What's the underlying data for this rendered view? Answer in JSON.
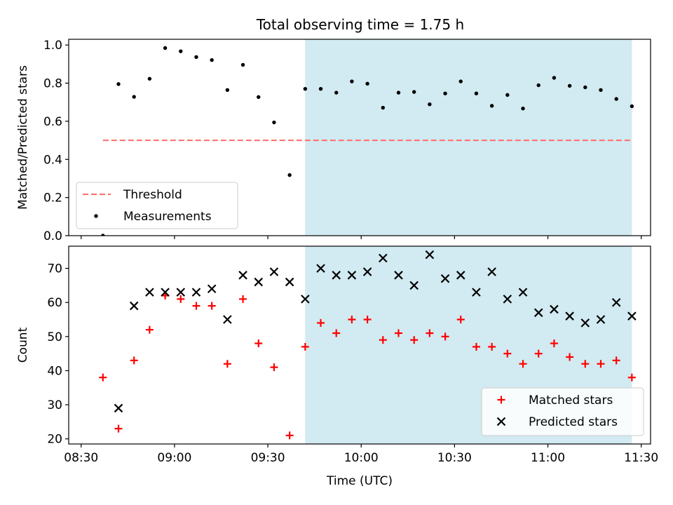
{
  "chart_data": [
    {
      "type": "scatter",
      "title": "Total observing time = 1.75 h",
      "xlabel": "",
      "ylabel": "Matched/Predicted stars",
      "ylim": [
        0,
        1.03
      ],
      "xlim": [
        "08:26",
        "11:33"
      ],
      "yticks": [
        "0.0",
        "0.2",
        "0.4",
        "0.6",
        "0.8",
        "1.0"
      ],
      "xticks": [
        "08:30",
        "09:00",
        "09:30",
        "10:00",
        "10:30",
        "11:00",
        "11:30"
      ],
      "shaded_span": [
        "09:42",
        "11:27"
      ],
      "shade_color": "#add8e6",
      "legend": "lower-left",
      "series": [
        {
          "name": "Threshold",
          "kind": "dashed-line",
          "color": "#ff7373",
          "x": [
            "08:37",
            "11:27"
          ],
          "y": [
            0.5,
            0.5
          ]
        },
        {
          "name": "Measurements",
          "kind": "dot",
          "color": "#000000",
          "x": [
            "08:37",
            "08:42",
            "08:47",
            "08:52",
            "08:57",
            "09:02",
            "09:07",
            "09:12",
            "09:17",
            "09:22",
            "09:27",
            "09:32",
            "09:37",
            "09:42",
            "09:47",
            "09:52",
            "09:57",
            "10:02",
            "10:07",
            "10:12",
            "10:17",
            "10:22",
            "10:27",
            "10:32",
            "10:37",
            "10:42",
            "10:47",
            "10:52",
            "10:57",
            "11:02",
            "11:07",
            "11:12",
            "11:17",
            "11:22",
            "11:27"
          ],
          "y": [
            0.0,
            0.795,
            0.728,
            0.823,
            0.984,
            0.967,
            0.937,
            0.921,
            0.764,
            0.896,
            0.727,
            0.594,
            0.318,
            0.77,
            0.77,
            0.75,
            0.809,
            0.797,
            0.671,
            0.75,
            0.754,
            0.689,
            0.746,
            0.809,
            0.746,
            0.681,
            0.738,
            0.667,
            0.789,
            0.828,
            0.786,
            0.778,
            0.764,
            0.717,
            0.679
          ]
        }
      ]
    },
    {
      "type": "scatter",
      "title": "",
      "xlabel": "Time (UTC)",
      "ylabel": "Count",
      "ylim": [
        18.5,
        76.5
      ],
      "xlim": [
        "08:26",
        "11:33"
      ],
      "yticks": [
        "20",
        "30",
        "40",
        "50",
        "60",
        "70"
      ],
      "xticks": [
        "08:30",
        "09:00",
        "09:30",
        "10:00",
        "10:30",
        "11:00",
        "11:30"
      ],
      "shaded_span": [
        "09:42",
        "11:27"
      ],
      "shade_color": "#add8e6",
      "legend": "lower-right",
      "series": [
        {
          "name": "Matched stars",
          "kind": "plus",
          "color": "#ff0000",
          "x": [
            "08:37",
            "08:42",
            "08:47",
            "08:52",
            "08:57",
            "09:02",
            "09:07",
            "09:12",
            "09:17",
            "09:22",
            "09:27",
            "09:32",
            "09:37",
            "09:42",
            "09:47",
            "09:52",
            "09:57",
            "10:02",
            "10:07",
            "10:12",
            "10:17",
            "10:22",
            "10:27",
            "10:32",
            "10:37",
            "10:42",
            "10:47",
            "10:52",
            "10:57",
            "11:02",
            "11:07",
            "11:12",
            "11:17",
            "11:22",
            "11:27"
          ],
          "y": [
            38,
            23,
            43,
            52,
            62,
            61,
            59,
            59,
            42,
            61,
            48,
            41,
            21,
            47,
            54,
            51,
            55,
            55,
            49,
            51,
            49,
            51,
            50,
            55,
            47,
            47,
            45,
            42,
            45,
            48,
            44,
            42,
            42,
            43,
            38
          ]
        },
        {
          "name": "Predicted stars",
          "kind": "x",
          "color": "#000000",
          "x": [
            "08:42",
            "08:47",
            "08:52",
            "08:57",
            "09:02",
            "09:07",
            "09:12",
            "09:17",
            "09:22",
            "09:27",
            "09:32",
            "09:37",
            "09:42",
            "09:47",
            "09:52",
            "09:57",
            "10:02",
            "10:07",
            "10:12",
            "10:17",
            "10:22",
            "10:27",
            "10:32",
            "10:37",
            "10:42",
            "10:47",
            "10:52",
            "10:57",
            "11:02",
            "11:07",
            "11:12",
            "11:17",
            "11:22",
            "11:27"
          ],
          "y": [
            29,
            59,
            63,
            63,
            63,
            63,
            64,
            55,
            68,
            66,
            69,
            66,
            61,
            70,
            68,
            68,
            69,
            73,
            68,
            65,
            74,
            67,
            68,
            63,
            69,
            61,
            63,
            57,
            58,
            56,
            54,
            55,
            60,
            56
          ]
        }
      ]
    }
  ]
}
